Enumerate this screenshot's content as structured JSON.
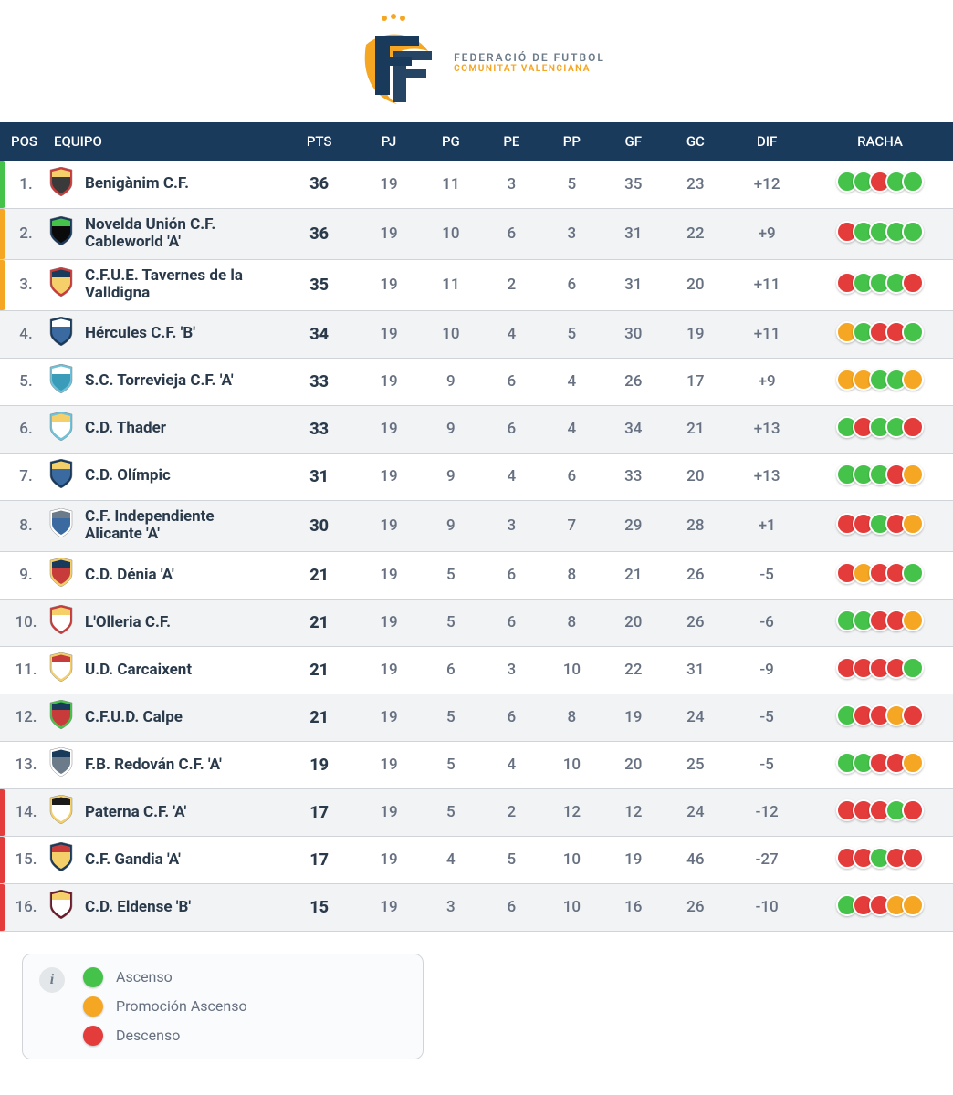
{
  "federation": {
    "line1": "FEDERACIÓ DE FUTBOL",
    "line2": "COMUNITAT VALENCIANA"
  },
  "colors": {
    "win": "#45c24a",
    "draw": "#f5a623",
    "loss": "#e43b3b",
    "ascenso": "#45c24a",
    "promocion": "#f5a623",
    "descenso": "#e43b3b",
    "logo_orange": "#f5a623",
    "logo_navy": "#1a3a5c"
  },
  "columns": [
    {
      "key": "pos",
      "label": "POS"
    },
    {
      "key": "equipo",
      "label": "EQUIPO"
    },
    {
      "key": "pts",
      "label": "PTS"
    },
    {
      "key": "pj",
      "label": "PJ"
    },
    {
      "key": "pg",
      "label": "PG"
    },
    {
      "key": "pe",
      "label": "PE"
    },
    {
      "key": "pp",
      "label": "PP"
    },
    {
      "key": "gf",
      "label": "GF"
    },
    {
      "key": "gc",
      "label": "GC"
    },
    {
      "key": "dif",
      "label": "DIF"
    },
    {
      "key": "racha",
      "label": "RACHA"
    }
  ],
  "rows": [
    {
      "pos": "1.",
      "status": "ascenso",
      "team": "Benigànim C.F.",
      "pts": 36,
      "pj": 19,
      "pg": 11,
      "pe": 3,
      "pp": 5,
      "gf": 35,
      "gc": 23,
      "dif": "+12",
      "streak": [
        "W",
        "W",
        "L",
        "W",
        "W"
      ],
      "crest_colors": [
        "#c73b3b",
        "#f5d06a",
        "#3a3a3a"
      ]
    },
    {
      "pos": "2.",
      "status": "promocion",
      "team": "Novelda Unión C.F. Cableworld 'A'",
      "pts": 36,
      "pj": 19,
      "pg": 10,
      "pe": 6,
      "pp": 3,
      "gf": 31,
      "gc": 22,
      "dif": "+9",
      "streak": [
        "L",
        "W",
        "W",
        "W",
        "W"
      ],
      "crest_colors": [
        "#1a3a5c",
        "#45c24a",
        "#0a0a0a"
      ]
    },
    {
      "pos": "3.",
      "status": "promocion",
      "team": "C.F.U.E. Tavernes de la Valldigna",
      "pts": 35,
      "pj": 19,
      "pg": 11,
      "pe": 2,
      "pp": 6,
      "gf": 31,
      "gc": 20,
      "dif": "+11",
      "streak": [
        "L",
        "W",
        "W",
        "W",
        "L"
      ],
      "crest_colors": [
        "#c73b3b",
        "#1a3a5c",
        "#f5d06a"
      ]
    },
    {
      "pos": "4.",
      "status": null,
      "team": "Hércules C.F. 'B'",
      "pts": 34,
      "pj": 19,
      "pg": 10,
      "pe": 4,
      "pp": 5,
      "gf": 30,
      "gc": 19,
      "dif": "+11",
      "streak": [
        "D",
        "W",
        "L",
        "L",
        "W"
      ],
      "crest_colors": [
        "#1a3a5c",
        "#ffffff",
        "#3a6aa0"
      ]
    },
    {
      "pos": "5.",
      "status": null,
      "team": "S.C. Torrevieja C.F. 'A'",
      "pts": 33,
      "pj": 19,
      "pg": 9,
      "pe": 6,
      "pp": 4,
      "gf": 26,
      "gc": 17,
      "dif": "+9",
      "streak": [
        "D",
        "D",
        "W",
        "W",
        "D"
      ],
      "crest_colors": [
        "#6ec1d8",
        "#ffffff",
        "#3a9cb8"
      ]
    },
    {
      "pos": "6.",
      "status": null,
      "team": "C.D. Thader",
      "pts": 33,
      "pj": 19,
      "pg": 9,
      "pe": 6,
      "pp": 4,
      "gf": 34,
      "gc": 21,
      "dif": "+13",
      "streak": [
        "W",
        "L",
        "W",
        "W",
        "L"
      ],
      "crest_colors": [
        "#6ec1d8",
        "#f5d06a",
        "#ffffff"
      ]
    },
    {
      "pos": "7.",
      "status": null,
      "team": "C.D. Olímpic",
      "pts": 31,
      "pj": 19,
      "pg": 9,
      "pe": 4,
      "pp": 6,
      "gf": 33,
      "gc": 20,
      "dif": "+13",
      "streak": [
        "W",
        "W",
        "W",
        "L",
        "D"
      ],
      "crest_colors": [
        "#1a3a5c",
        "#f5d06a",
        "#3a6aa0"
      ]
    },
    {
      "pos": "8.",
      "status": null,
      "team": "C.F. Independiente Alicante 'A'",
      "pts": 30,
      "pj": 19,
      "pg": 9,
      "pe": 3,
      "pp": 7,
      "gf": 29,
      "gc": 28,
      "dif": "+1",
      "streak": [
        "L",
        "L",
        "W",
        "L",
        "D"
      ],
      "crest_colors": [
        "#ffffff",
        "#6b7b8a",
        "#3a6aa0"
      ]
    },
    {
      "pos": "9.",
      "status": null,
      "team": "C.D. Dénia 'A'",
      "pts": 21,
      "pj": 19,
      "pg": 5,
      "pe": 6,
      "pp": 8,
      "gf": 21,
      "gc": 26,
      "dif": "-5",
      "streak": [
        "L",
        "D",
        "L",
        "L",
        "W"
      ],
      "crest_colors": [
        "#f5d06a",
        "#1a3a5c",
        "#c73b3b"
      ]
    },
    {
      "pos": "10.",
      "status": null,
      "team": "L'Olleria C.F.",
      "pts": 21,
      "pj": 19,
      "pg": 5,
      "pe": 6,
      "pp": 8,
      "gf": 20,
      "gc": 26,
      "dif": "-6",
      "streak": [
        "W",
        "W",
        "L",
        "L",
        "D"
      ],
      "crest_colors": [
        "#c73b3b",
        "#f5d06a",
        "#ffffff"
      ]
    },
    {
      "pos": "11.",
      "status": null,
      "team": "U.D. Carcaixent",
      "pts": 21,
      "pj": 19,
      "pg": 6,
      "pe": 3,
      "pp": 10,
      "gf": 22,
      "gc": 31,
      "dif": "-9",
      "streak": [
        "L",
        "L",
        "L",
        "L",
        "W"
      ],
      "crest_colors": [
        "#f5d06a",
        "#c73b3b",
        "#ffffff"
      ]
    },
    {
      "pos": "12.",
      "status": null,
      "team": "C.F.U.D. Calpe",
      "pts": 21,
      "pj": 19,
      "pg": 5,
      "pe": 6,
      "pp": 8,
      "gf": 19,
      "gc": 24,
      "dif": "-5",
      "streak": [
        "W",
        "L",
        "L",
        "D",
        "L"
      ],
      "crest_colors": [
        "#45c24a",
        "#1a3a5c",
        "#c73b3b"
      ]
    },
    {
      "pos": "13.",
      "status": null,
      "team": "F.B. Redován C.F. 'A'",
      "pts": 19,
      "pj": 19,
      "pg": 5,
      "pe": 4,
      "pp": 10,
      "gf": 20,
      "gc": 25,
      "dif": "-5",
      "streak": [
        "W",
        "W",
        "L",
        "L",
        "D"
      ],
      "crest_colors": [
        "#ffffff",
        "#1a3a5c",
        "#6b7b8a"
      ]
    },
    {
      "pos": "14.",
      "status": "descenso",
      "team": "Paterna C.F. 'A'",
      "pts": 17,
      "pj": 19,
      "pg": 5,
      "pe": 2,
      "pp": 12,
      "gf": 12,
      "gc": 24,
      "dif": "-12",
      "streak": [
        "L",
        "L",
        "L",
        "W",
        "L"
      ],
      "crest_colors": [
        "#f5d06a",
        "#1a1a1a",
        "#ffffff"
      ]
    },
    {
      "pos": "15.",
      "status": "descenso",
      "team": "C.F. Gandia 'A'",
      "pts": 17,
      "pj": 19,
      "pg": 4,
      "pe": 5,
      "pp": 10,
      "gf": 19,
      "gc": 46,
      "dif": "-27",
      "streak": [
        "L",
        "L",
        "W",
        "L",
        "L"
      ],
      "crest_colors": [
        "#1a3a5c",
        "#c73b3b",
        "#f5d06a"
      ]
    },
    {
      "pos": "16.",
      "status": "descenso",
      "team": "C.D. Eldense 'B'",
      "pts": 15,
      "pj": 19,
      "pg": 3,
      "pe": 6,
      "pp": 10,
      "gf": 16,
      "gc": 26,
      "dif": "-10",
      "streak": [
        "W",
        "L",
        "L",
        "D",
        "D"
      ],
      "crest_colors": [
        "#6b1a2a",
        "#f5d06a",
        "#ffffff"
      ]
    }
  ],
  "legend": {
    "items": [
      {
        "key": "ascenso",
        "label": "Ascenso"
      },
      {
        "key": "promocion",
        "label": "Promoción Ascenso"
      },
      {
        "key": "descenso",
        "label": "Descenso"
      }
    ]
  }
}
